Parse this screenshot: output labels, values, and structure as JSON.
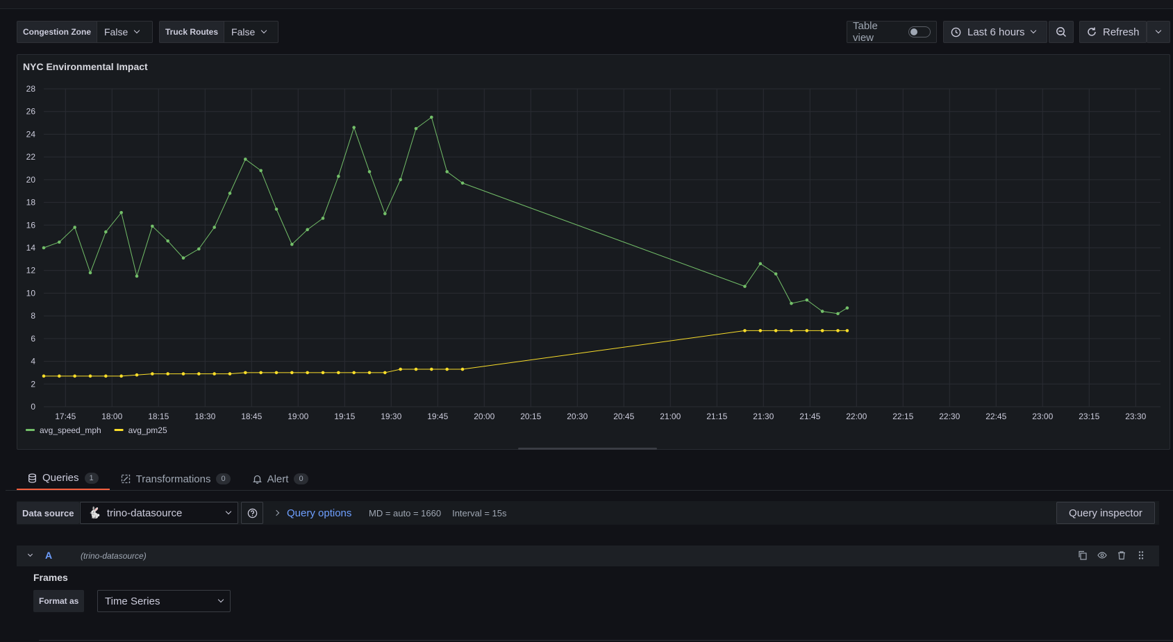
{
  "filters": [
    {
      "label": "Congestion Zone",
      "value": "False"
    },
    {
      "label": "Truck Routes",
      "value": "False"
    }
  ],
  "toolbar": {
    "table_view_label": "Table view",
    "time_range": "Last 6 hours",
    "refresh_label": "Refresh"
  },
  "panel": {
    "title": "NYC Environmental Impact"
  },
  "chart_data": {
    "type": "line",
    "title": "NYC Environmental Impact",
    "xlabel": "",
    "ylabel": "",
    "x_ticks": [
      "17:45",
      "18:00",
      "18:15",
      "18:30",
      "18:45",
      "19:00",
      "19:15",
      "19:30",
      "19:45",
      "20:00",
      "20:15",
      "20:30",
      "20:45",
      "21:00",
      "21:15",
      "21:30",
      "21:45",
      "22:00",
      "22:15",
      "22:30",
      "22:45",
      "23:00",
      "23:15",
      "23:30"
    ],
    "y_ticks": [
      0,
      2,
      4,
      6,
      8,
      10,
      12,
      14,
      16,
      18,
      20,
      22,
      24,
      26,
      28
    ],
    "ylim": [
      0,
      28
    ],
    "xlim": [
      "17:38",
      "23:38"
    ],
    "grid": true,
    "legend_position": "bottom-left",
    "series": [
      {
        "name": "avg_speed_mph",
        "color": "#73bf69",
        "x": [
          "17:38",
          "17:43",
          "17:48",
          "17:53",
          "17:58",
          "18:03",
          "18:08",
          "18:13",
          "18:18",
          "18:23",
          "18:28",
          "18:33",
          "18:38",
          "18:43",
          "18:48",
          "18:53",
          "18:58",
          "19:03",
          "19:08",
          "19:13",
          "19:18",
          "19:23",
          "19:28",
          "19:33",
          "19:38",
          "19:43",
          "19:48",
          "19:53",
          "21:24",
          "21:29",
          "21:34",
          "21:39",
          "21:44",
          "21:49",
          "21:54",
          "21:57"
        ],
        "values": [
          14.0,
          14.5,
          15.8,
          11.8,
          15.4,
          17.1,
          11.5,
          15.9,
          14.6,
          13.1,
          13.9,
          15.8,
          18.8,
          21.8,
          20.8,
          17.4,
          14.3,
          15.6,
          16.6,
          20.3,
          24.6,
          20.7,
          17.0,
          20.0,
          24.5,
          25.5,
          20.7,
          19.7,
          10.6,
          12.6,
          11.7,
          9.1,
          9.4,
          8.4,
          8.2,
          8.7
        ]
      },
      {
        "name": "avg_pm25",
        "color": "#fade2a",
        "x": [
          "17:38",
          "17:43",
          "17:48",
          "17:53",
          "17:58",
          "18:03",
          "18:08",
          "18:13",
          "18:18",
          "18:23",
          "18:28",
          "18:33",
          "18:38",
          "18:43",
          "18:48",
          "18:53",
          "18:58",
          "19:03",
          "19:08",
          "19:13",
          "19:18",
          "19:23",
          "19:28",
          "19:33",
          "19:38",
          "19:43",
          "19:48",
          "19:53",
          "21:24",
          "21:29",
          "21:34",
          "21:39",
          "21:44",
          "21:49",
          "21:54",
          "21:57"
        ],
        "values": [
          2.7,
          2.7,
          2.7,
          2.7,
          2.7,
          2.7,
          2.8,
          2.9,
          2.9,
          2.9,
          2.9,
          2.9,
          2.9,
          3.0,
          3.0,
          3.0,
          3.0,
          3.0,
          3.0,
          3.0,
          3.0,
          3.0,
          3.0,
          3.3,
          3.3,
          3.3,
          3.3,
          3.3,
          6.7,
          6.7,
          6.7,
          6.7,
          6.7,
          6.7,
          6.7,
          6.7
        ]
      }
    ]
  },
  "tabs": [
    {
      "label": "Queries",
      "count": "1"
    },
    {
      "label": "Transformations",
      "count": "0"
    },
    {
      "label": "Alert",
      "count": "0"
    }
  ],
  "query_bar": {
    "datasource_label": "Data source",
    "datasource_value": "trino-datasource",
    "query_options_label": "Query options",
    "md_text": "MD = auto = 1660",
    "interval_text": "Interval = 15s",
    "inspector_label": "Query inspector"
  },
  "query": {
    "ref_id": "A",
    "datasource": "(trino-datasource)",
    "frames_label": "Frames",
    "format_label": "Format as",
    "format_value": "Time Series"
  }
}
